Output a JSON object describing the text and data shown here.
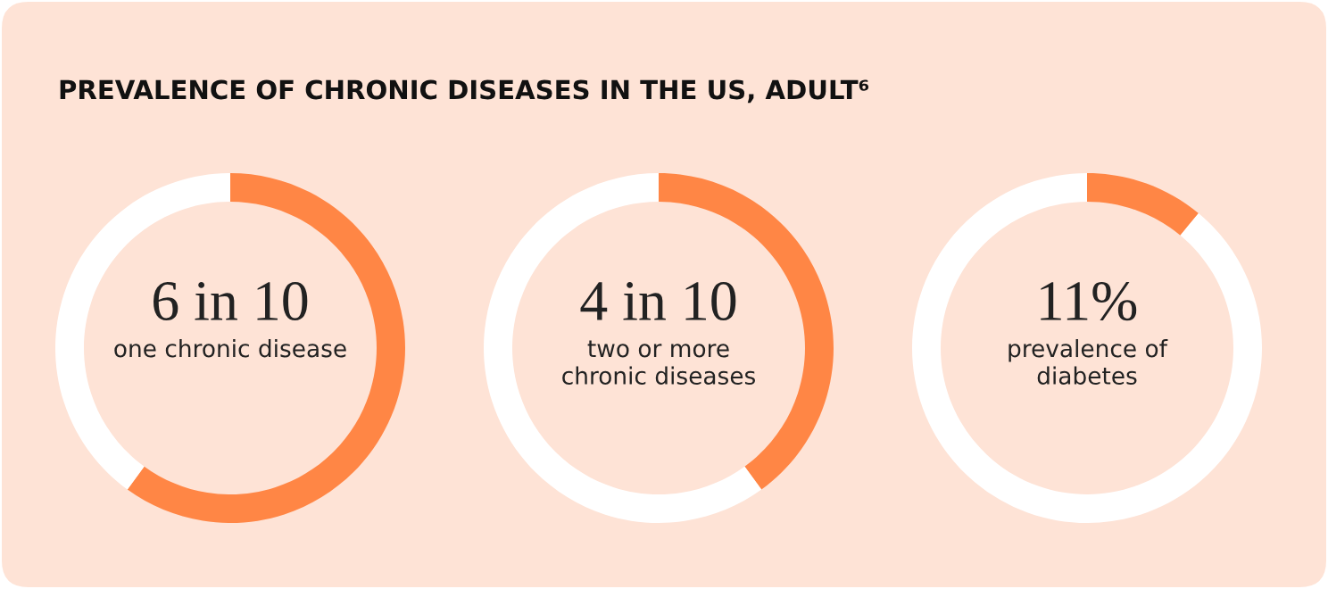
{
  "chart_data": [
    {
      "type": "donut",
      "title": "PREVALENCE OF CHRONIC DISEASES IN THE US, ADULT⁶",
      "categories": [
        null,
        null
      ],
      "values": [
        60,
        40
      ],
      "colors": [
        "#ff8645",
        "#ffffff"
      ],
      "annotations": [
        "6 in 10",
        "one chronic disease"
      ]
    },
    {
      "type": "donut",
      "categories": [
        null,
        null
      ],
      "values": [
        40,
        60
      ],
      "colors": [
        "#ff8645",
        "#ffffff"
      ],
      "annotations": [
        "4 in 10",
        "two or more\nchronic diseases"
      ]
    },
    {
      "type": "donut",
      "categories": [
        null,
        null
      ],
      "values": [
        11,
        89
      ],
      "colors": [
        "#ff8645",
        "#ffffff"
      ],
      "annotations": [
        "11%",
        "prevalence of\ndiabetes"
      ]
    }
  ]
}
